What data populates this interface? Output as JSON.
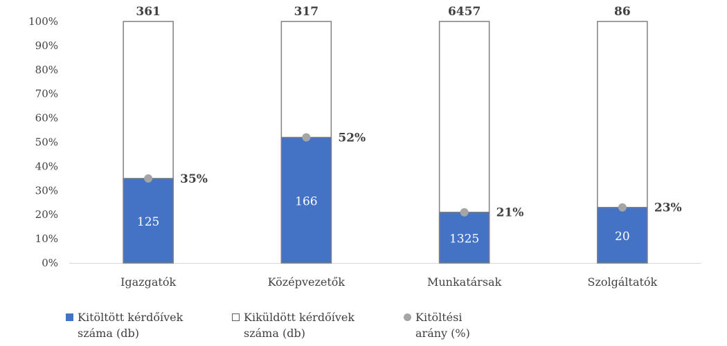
{
  "colors": {
    "filled": "#4472C4",
    "sent_border": "#7F7F7F",
    "rate_marker": "#A5A5A5",
    "axis": "#D9D9D9",
    "text": "#404040"
  },
  "chart_data": {
    "type": "bar",
    "stacking": "100% stacked",
    "categories": [
      "Igazgatók",
      "Középvezetők",
      "Munkatársak",
      "Szolgáltatók"
    ],
    "ylim": [
      0,
      100
    ],
    "yticks": [
      "0%",
      "10%",
      "20%",
      "30%",
      "40%",
      "50%",
      "60%",
      "70%",
      "80%",
      "90%",
      "100%"
    ],
    "grid": false,
    "legend_position": "bottom-left",
    "series": [
      {
        "name": "Kitöltött kérdőívek\nszáma (db)",
        "kind": "bar-filled",
        "values": [
          125,
          166,
          1325,
          20
        ]
      },
      {
        "name": "Kiküldött kérdőívek\nszáma (db)",
        "kind": "bar-outline",
        "values": [
          361,
          317,
          6457,
          86
        ]
      },
      {
        "name": "Kitöltési\narány (%)",
        "kind": "marker",
        "values": [
          35,
          52,
          21,
          23
        ],
        "labels": [
          "35%",
          "52%",
          "21%",
          "23%"
        ]
      }
    ]
  }
}
